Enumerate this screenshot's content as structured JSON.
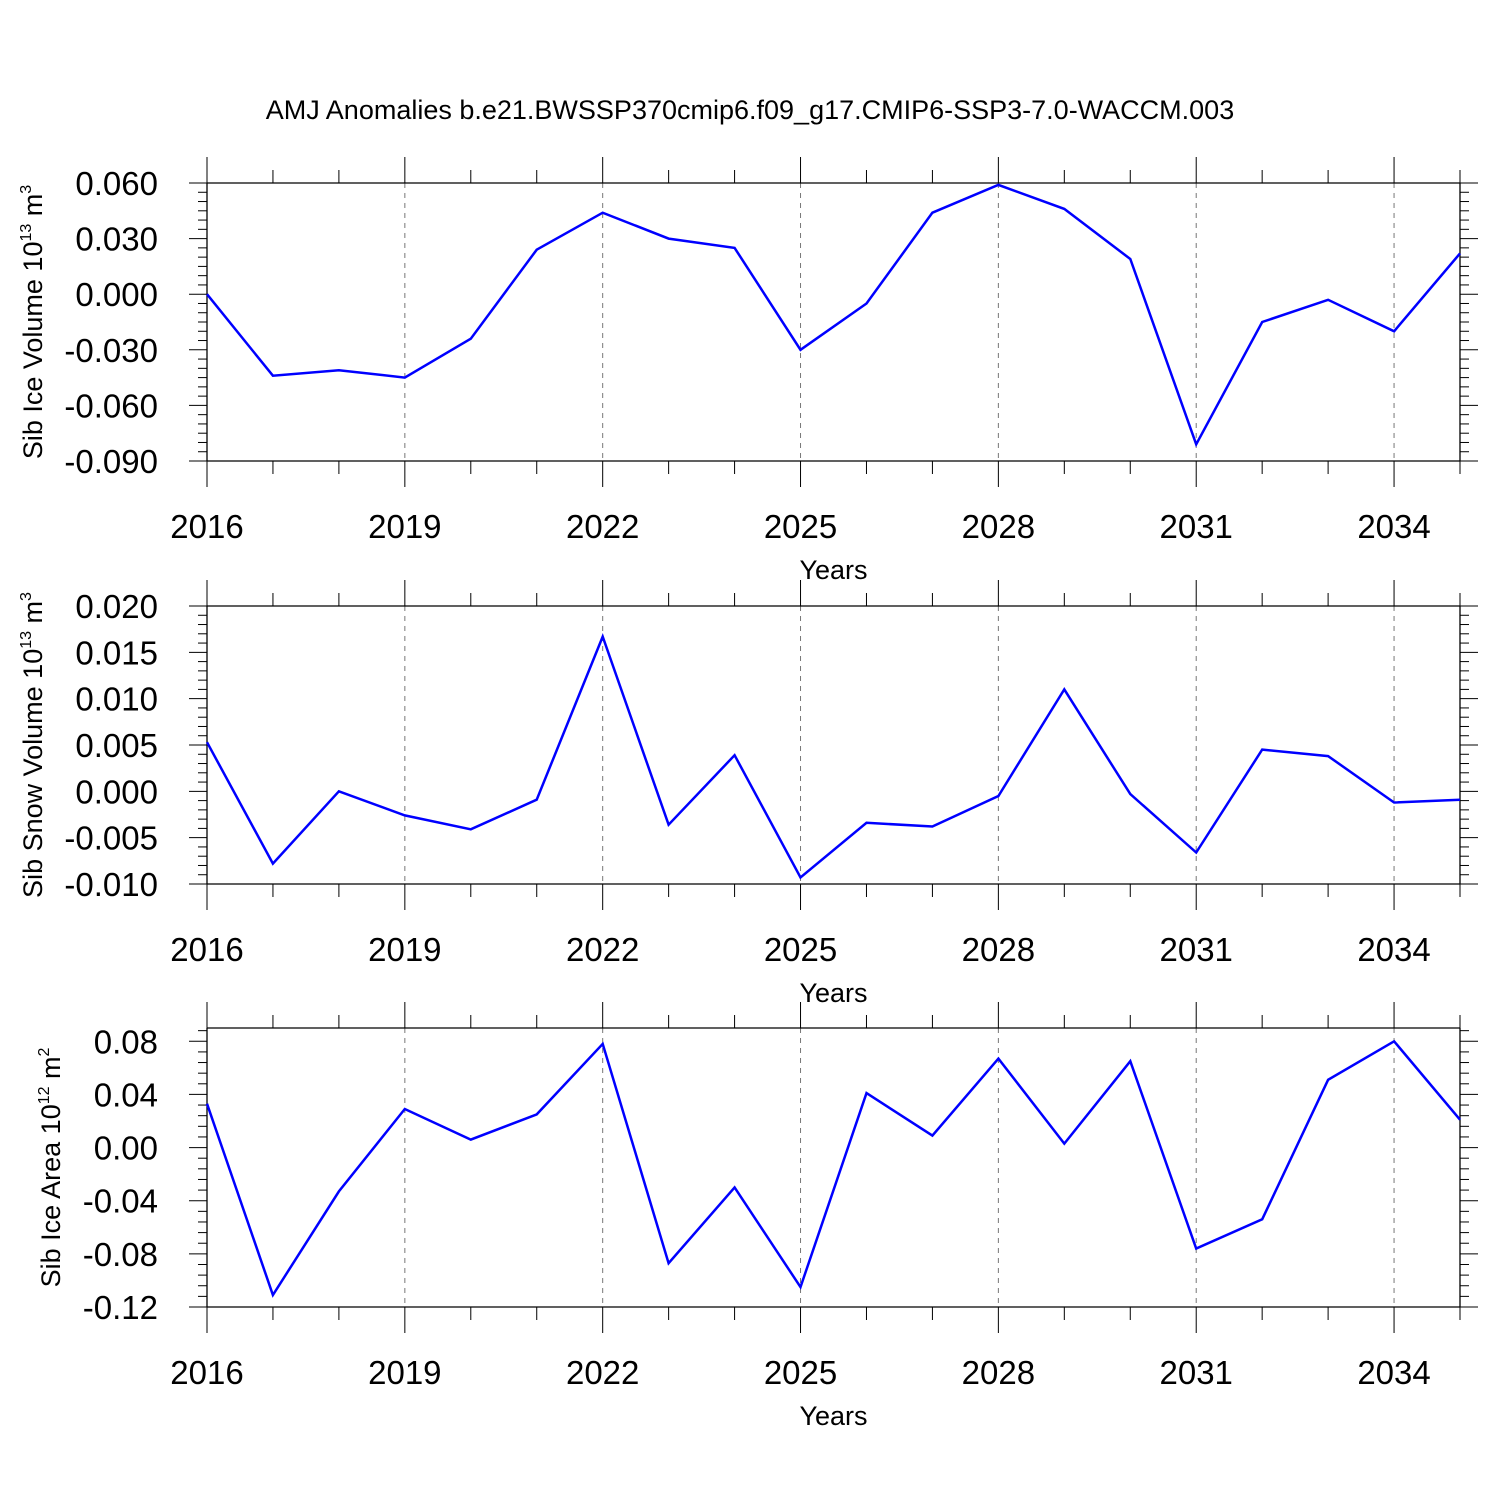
{
  "title": "AMJ Anomalies b.e21.BWSSP370cmip6.f09_g17.CMIP6-SSP3-7.0-WACCM.003",
  "line_color": "#0000ff",
  "chart_data": [
    {
      "type": "line",
      "xlabel": "Years",
      "ylabel_main": "Sib Ice Volume 10",
      "ylabel_exp1": "13",
      "ylabel_mid": " m",
      "ylabel_exp2": "3",
      "ylim": [
        -0.09,
        0.06
      ],
      "yticks": [
        -0.09,
        -0.06,
        -0.03,
        0.0,
        0.03,
        0.06
      ],
      "ytick_labels": [
        "-0.090",
        "-0.060",
        "-0.030",
        "0.000",
        "0.030",
        "0.060"
      ],
      "xlim": [
        2016,
        2035
      ],
      "xticks": [
        2016,
        2019,
        2022,
        2025,
        2028,
        2031,
        2034
      ],
      "xtick_labels": [
        "2016",
        "2019",
        "2022",
        "2025",
        "2028",
        "2031",
        "2034"
      ],
      "grid": "vertical dashed at labeled years",
      "series": [
        {
          "x": [
            2016,
            2017,
            2018,
            2019,
            2020,
            2021,
            2022,
            2023,
            2024,
            2025,
            2026,
            2027,
            2028,
            2029,
            2030,
            2031,
            2032,
            2033,
            2034,
            2035
          ],
          "values": [
            0.0,
            -0.044,
            -0.041,
            -0.045,
            -0.024,
            0.024,
            0.044,
            0.03,
            0.025,
            -0.03,
            -0.005,
            0.044,
            0.059,
            0.046,
            0.019,
            -0.081,
            -0.015,
            -0.003,
            -0.02,
            0.022
          ]
        }
      ]
    },
    {
      "type": "line",
      "xlabel": "Years",
      "ylabel_main": "Sib Snow Volume 10",
      "ylabel_exp1": "13",
      "ylabel_mid": " m",
      "ylabel_exp2": "3",
      "ylim": [
        -0.01,
        0.02
      ],
      "yticks": [
        -0.01,
        -0.005,
        0.0,
        0.005,
        0.01,
        0.015,
        0.02
      ],
      "ytick_labels": [
        "-0.010",
        "-0.005",
        "0.000",
        "0.005",
        "0.010",
        "0.015",
        "0.020"
      ],
      "xlim": [
        2016,
        2035
      ],
      "xticks": [
        2016,
        2019,
        2022,
        2025,
        2028,
        2031,
        2034
      ],
      "xtick_labels": [
        "2016",
        "2019",
        "2022",
        "2025",
        "2028",
        "2031",
        "2034"
      ],
      "grid": "vertical dashed at labeled years",
      "series": [
        {
          "x": [
            2016,
            2017,
            2018,
            2019,
            2020,
            2021,
            2022,
            2023,
            2024,
            2025,
            2026,
            2027,
            2028,
            2029,
            2030,
            2031,
            2032,
            2033,
            2034,
            2035
          ],
          "values": [
            0.0053,
            -0.0078,
            0.0,
            -0.0026,
            -0.0041,
            -0.0009,
            0.0167,
            -0.0036,
            0.0039,
            -0.0093,
            -0.0034,
            -0.0038,
            -0.0005,
            0.011,
            -0.0003,
            -0.0066,
            0.0045,
            0.0038,
            -0.0012,
            -0.0009
          ]
        }
      ]
    },
    {
      "type": "line",
      "xlabel": "Years",
      "ylabel_main": "Sib Ice Area 10",
      "ylabel_exp1": "12",
      "ylabel_mid": " m",
      "ylabel_exp2": "2",
      "ylim": [
        -0.12,
        0.09
      ],
      "yticks": [
        -0.12,
        -0.08,
        -0.04,
        0.0,
        0.04,
        0.08
      ],
      "ytick_labels": [
        "-0.12",
        "-0.08",
        "-0.04",
        "0.00",
        "0.04",
        "0.08"
      ],
      "xlim": [
        2016,
        2035
      ],
      "xticks": [
        2016,
        2019,
        2022,
        2025,
        2028,
        2031,
        2034
      ],
      "xtick_labels": [
        "2016",
        "2019",
        "2022",
        "2025",
        "2028",
        "2031",
        "2034"
      ],
      "grid": "vertical dashed at labeled years",
      "series": [
        {
          "x": [
            2016,
            2017,
            2018,
            2019,
            2020,
            2021,
            2022,
            2023,
            2024,
            2025,
            2026,
            2027,
            2028,
            2029,
            2030,
            2031,
            2032,
            2033,
            2034,
            2035
          ],
          "values": [
            0.033,
            -0.111,
            -0.033,
            0.029,
            0.006,
            0.025,
            0.078,
            -0.087,
            -0.03,
            -0.105,
            0.041,
            0.009,
            0.067,
            0.003,
            0.065,
            -0.076,
            -0.054,
            0.051,
            0.08,
            0.021
          ]
        }
      ]
    }
  ]
}
